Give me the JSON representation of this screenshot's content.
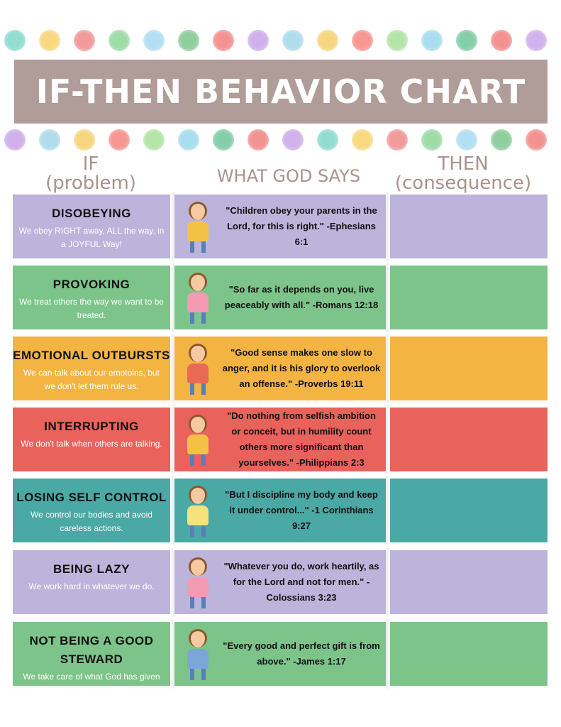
{
  "title": "IF-THEN BEHAVIOR CHART",
  "headers": {
    "if_line1": "IF",
    "if_line2": "(problem)",
    "god": "WHAT GOD SAYS",
    "then_line1": "THEN",
    "then_line2": "(consequence)"
  },
  "colors": {
    "title_bg": "#b09c98",
    "header_text": "#a8928e",
    "lavender": "#bcb4db",
    "green": "#7dc48a",
    "orange": "#f3b442",
    "red": "#e9625c",
    "teal": "#4aa8a5",
    "dots": [
      "#7fd8c8",
      "#f7d36b",
      "#f08a8a",
      "#8fd69a",
      "#a7d9f2",
      "#7cc68c",
      "#f2807e",
      "#c7a3e8",
      "#a3d7e8",
      "#f6cf6b",
      "#f5857e",
      "#a8e09a",
      "#9bd8ee",
      "#6fc79a",
      "#f07f7f",
      "#c9a5ea"
    ]
  },
  "rows": [
    {
      "problem": "DISOBEYING",
      "desc": "We obey RIGHT away, ALL the way, in a JOYFUL Way!",
      "verse": "\"Children obey your parents in the Lord, for this is right.\" -Ephesians 6:1",
      "color": "lavender",
      "shirt": "#f3c244"
    },
    {
      "problem": "PROVOKING",
      "desc": "We treat others the way we want to be treated.",
      "verse": "\"So far as it depends on you, live peaceably with all.\" -Romans 12:18",
      "color": "green",
      "shirt": "#f29bb3"
    },
    {
      "problem": "EMOTIONAL OUTBURSTS",
      "desc": "We can talk about our emotoins, but we don't let them rule us.",
      "verse": "\"Good sense makes one slow to anger, and it is his glory to overlook an offense.\" -Proverbs 19:11",
      "color": "orange",
      "shirt": "#e86a55"
    },
    {
      "problem": "INTERRUPTING",
      "desc": "We don't talk when others are talking.",
      "verse": "\"Do nothing from selfish ambition or conceit, but in humility count others more significant than yourselves.\" -Philippians 2:3",
      "color": "red",
      "shirt": "#f3c244"
    },
    {
      "problem": "LOSING SELF CONTROL",
      "desc": "We control our bodies and avoid careless actions.",
      "verse": "\"But I discipline my body and keep it under control...\" -1 Corinthians 9:27",
      "color": "teal",
      "shirt": "#f6e27a"
    },
    {
      "problem": "BEING LAZY",
      "desc": "We work hard in whatever we do.",
      "verse": "\"Whatever you do, work heartily, as for the Lord and not for men.\" -Colossians 3:23",
      "color": "lavender",
      "shirt": "#f29bb3"
    },
    {
      "problem": "NOT BEING A GOOD STEWARD",
      "desc": "We take care of what God has given us.",
      "verse": "\"Every good and perfect gift is from above.\" -James 1:17",
      "color": "green",
      "shirt": "#7aa6d8"
    }
  ]
}
